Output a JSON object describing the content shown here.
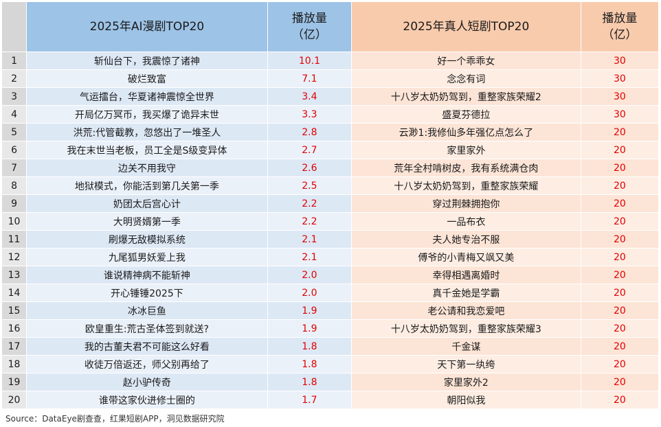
{
  "headers": {
    "index": "",
    "ai_title": "2025年AI漫剧TOP20",
    "ai_views": "播放量\n（亿）",
    "real_title": "2025年真人短剧TOP20",
    "real_views": "播放量\n（亿）"
  },
  "rows": [
    {
      "rank": "1",
      "ai_title": "斩仙台下，我震惊了诸神",
      "ai_views": "10.1",
      "real_title": "好一个乖乖女",
      "real_views": "30"
    },
    {
      "rank": "2",
      "ai_title": "破烂致富",
      "ai_views": "7.1",
      "real_title": "念念有词",
      "real_views": "30"
    },
    {
      "rank": "3",
      "ai_title": "气运擂台，华夏诸神震惊全世界",
      "ai_views": "3.4",
      "real_title": "十八岁太奶奶驾到，重整家族荣耀2",
      "real_views": "30"
    },
    {
      "rank": "4",
      "ai_title": "开局亿万冥币，我买爆了诡异末世",
      "ai_views": "3.3",
      "real_title": "盛夏芬德拉",
      "real_views": "30"
    },
    {
      "rank": "5",
      "ai_title": "洪荒:代管截教，忽悠出了一堆圣人",
      "ai_views": "2.8",
      "real_title": "云渺1:我修仙多年强亿点怎么了",
      "real_views": "20"
    },
    {
      "rank": "6",
      "ai_title": "我在末世当老板，员工全是S级变异体",
      "ai_views": "2.7",
      "real_title": "家里家外",
      "real_views": "20"
    },
    {
      "rank": "7",
      "ai_title": "边关不用我守",
      "ai_views": "2.6",
      "real_title": "荒年全村啃树皮，我有系统满仓肉",
      "real_views": "20"
    },
    {
      "rank": "8",
      "ai_title": "地狱模式，你能活到第几关第一季",
      "ai_views": "2.5",
      "real_title": "十八岁太奶奶驾到，重整家族荣耀",
      "real_views": "20"
    },
    {
      "rank": "9",
      "ai_title": "奶团太后宫心计",
      "ai_views": "2.2",
      "real_title": "穿过荆棘拥抱你",
      "real_views": "20"
    },
    {
      "rank": "10",
      "ai_title": "大明贤婿第一季",
      "ai_views": "2.2",
      "real_title": "一品布衣",
      "real_views": "20"
    },
    {
      "rank": "11",
      "ai_title": "刷爆无敌模拟系统",
      "ai_views": "2.1",
      "real_title": "夫人她专治不服",
      "real_views": "20"
    },
    {
      "rank": "12",
      "ai_title": "九尾狐男妖爱上我",
      "ai_views": "2.1",
      "real_title": "傅爷的小青梅又飒又美",
      "real_views": "20"
    },
    {
      "rank": "13",
      "ai_title": "谁说精神病不能斩神",
      "ai_views": "2.0",
      "real_title": "幸得相遇离婚时",
      "real_views": "20"
    },
    {
      "rank": "14",
      "ai_title": "开心锤锤2025下",
      "ai_views": "2.0",
      "real_title": "真千金她是学霸",
      "real_views": "20"
    },
    {
      "rank": "15",
      "ai_title": "冰冰巨鱼",
      "ai_views": "1.9",
      "real_title": "老公请和我恋爱吧",
      "real_views": "20"
    },
    {
      "rank": "16",
      "ai_title": "欧皇重生:荒古圣体签到就送?",
      "ai_views": "1.9",
      "real_title": "十八岁太奶奶驾到，重整家族荣耀3",
      "real_views": "20"
    },
    {
      "rank": "17",
      "ai_title": "我的古董夫君不可能这么好看",
      "ai_views": "1.8",
      "real_title": "千金谋",
      "real_views": "20"
    },
    {
      "rank": "18",
      "ai_title": "收徒万倍返还，师父别再给了",
      "ai_views": "1.8",
      "real_title": "天下第一纨绔",
      "real_views": "20"
    },
    {
      "rank": "19",
      "ai_title": "赵小驴传奇",
      "ai_views": "1.8",
      "real_title": "家里家外2",
      "real_views": "20"
    },
    {
      "rank": "20",
      "ai_title": "谁带这家伙进修士圈的",
      "ai_views": "1.7",
      "real_title": "朝阳似我",
      "real_views": "20"
    }
  ],
  "source": "Source：DataEye剧查查，红果短剧APP，洞见数据研究院",
  "colors": {
    "ai_header": "#9dc3e6",
    "real_header": "#f8cbad",
    "ai_body": "#dde8f5",
    "real_body": "#fce4d6",
    "views_text": "#e00000"
  }
}
